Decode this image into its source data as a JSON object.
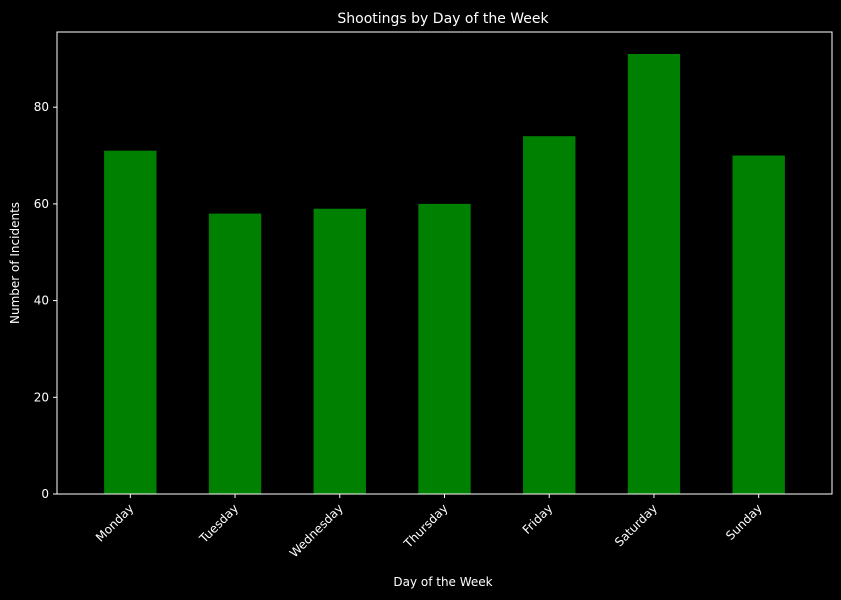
{
  "chart_data": {
    "type": "bar",
    "title": "Shootings by Day of the Week",
    "xlabel": "Day of the Week",
    "ylabel": "Number of Incidents",
    "categories": [
      "Monday",
      "Tuesday",
      "Wednesday",
      "Thursday",
      "Friday",
      "Saturday",
      "Sunday"
    ],
    "values": [
      71,
      58,
      59,
      60,
      74,
      91,
      70
    ],
    "ylim": [
      0,
      95.55
    ],
    "yticks": [
      0,
      20,
      40,
      60,
      80
    ],
    "ytick_labels": [
      "0",
      "20",
      "40",
      "60",
      "80"
    ],
    "xtick_rotation": 45,
    "grid": false,
    "legend": "none",
    "colors": {
      "background": "#000000",
      "bar": "#008000",
      "axis": "#ffffff",
      "text": "#ffffff"
    }
  }
}
